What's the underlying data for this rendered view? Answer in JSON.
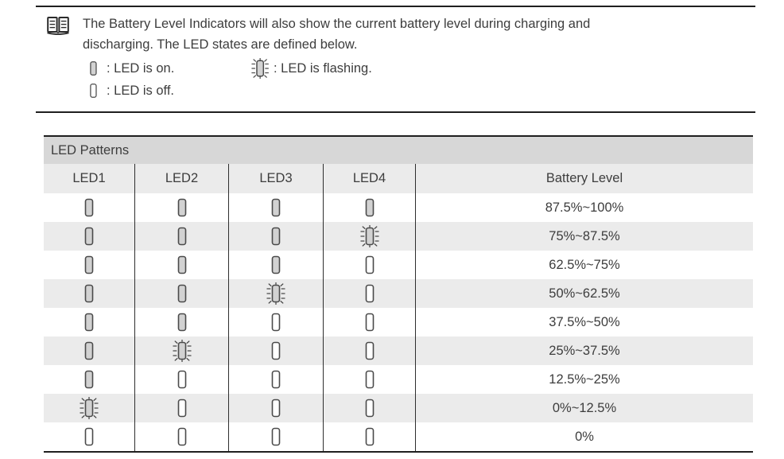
{
  "colors": {
    "rule": "#1f1f1f",
    "text": "#3d3d3d",
    "divider": "#2e2e2e",
    "title_bar_bg": "#d7d7d7",
    "stripe_bg": "#ebebeb",
    "led_fill": "#d2d2d2",
    "led_border": "#4a4a4a"
  },
  "note": {
    "icon": "open-book",
    "lines": [
      "The Battery Level Indicators will also show the current battery level during charging and",
      "discharging. The LED states are defined below."
    ],
    "legend": [
      {
        "state": "on",
        "label": ": LED is on."
      },
      {
        "state": "flashing",
        "label": ": LED is flashing."
      },
      {
        "state": "off",
        "label": ": LED is off."
      }
    ]
  },
  "table": {
    "title": "LED Patterns",
    "columns": [
      "LED1",
      "LED2",
      "LED3",
      "LED4",
      "Battery Level"
    ],
    "rows": [
      {
        "leds": [
          "on",
          "on",
          "on",
          "on"
        ],
        "battery_level": "87.5%~100%"
      },
      {
        "leds": [
          "on",
          "on",
          "on",
          "flashing"
        ],
        "battery_level": "75%~87.5%"
      },
      {
        "leds": [
          "on",
          "on",
          "on",
          "off"
        ],
        "battery_level": "62.5%~75%"
      },
      {
        "leds": [
          "on",
          "on",
          "flashing",
          "off"
        ],
        "battery_level": "50%~62.5%"
      },
      {
        "leds": [
          "on",
          "on",
          "off",
          "off"
        ],
        "battery_level": "37.5%~50%"
      },
      {
        "leds": [
          "on",
          "flashing",
          "off",
          "off"
        ],
        "battery_level": "25%~37.5%"
      },
      {
        "leds": [
          "on",
          "off",
          "off",
          "off"
        ],
        "battery_level": "12.5%~25%"
      },
      {
        "leds": [
          "flashing",
          "off",
          "off",
          "off"
        ],
        "battery_level": "0%~12.5%"
      },
      {
        "leds": [
          "off",
          "off",
          "off",
          "off"
        ],
        "battery_level": "0%"
      }
    ]
  }
}
